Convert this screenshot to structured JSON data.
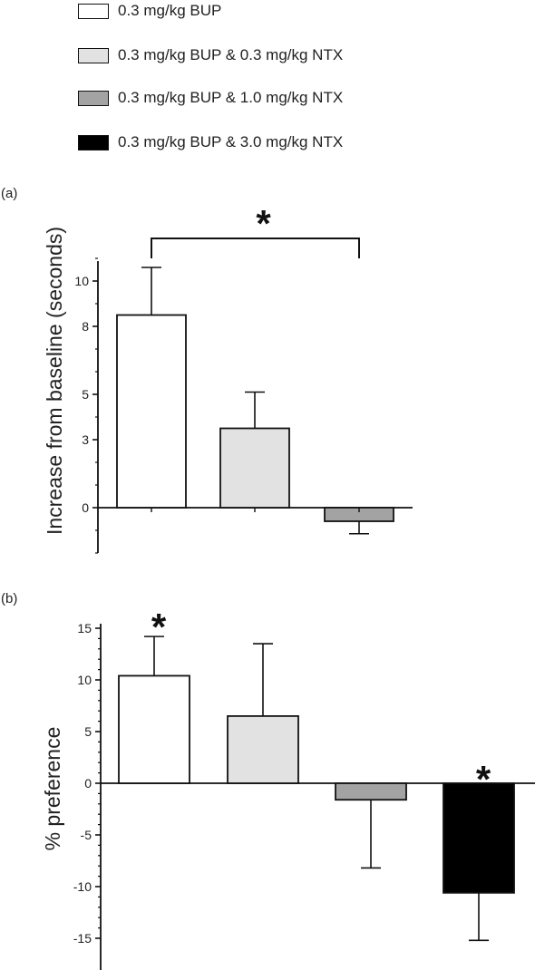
{
  "legend": [
    {
      "label": "0.3 mg/kg BUP",
      "color": "#ffffff"
    },
    {
      "label": "0.3 mg/kg BUP & 0.3 mg/kg NTX",
      "color": "#e2e2e2"
    },
    {
      "label": "0.3 mg/kg BUP & 1.0 mg/kg NTX",
      "color": "#a3a3a3"
    },
    {
      "label": "0.3 mg/kg BUP & 3.0 mg/kg NTX",
      "color": "#000000"
    }
  ],
  "panels": {
    "a_label": "(a)",
    "b_label": "(b)"
  },
  "chart_data": [
    {
      "type": "bar",
      "panel": "(a)",
      "ylabel": "Increase from baseline (seconds)",
      "ylim": [
        -2,
        11
      ],
      "yticks": [
        10,
        8,
        5,
        3,
        0
      ],
      "tick_labels": [
        "10",
        "8",
        "5",
        "3",
        "0"
      ],
      "categories": [
        "0.3 mg/kg BUP",
        "0.3 mg/kg BUP & 0.3 mg/kg NTX",
        "0.3 mg/kg BUP & 1.0 mg/kg NTX"
      ],
      "values": [
        8.5,
        3.5,
        -0.6
      ],
      "errors": [
        2.1,
        1.6,
        0.55
      ],
      "colors": [
        "#ffffff",
        "#e2e2e2",
        "#a3a3a3"
      ],
      "significance": [
        {
          "from": 0,
          "to": 2,
          "label": "*"
        }
      ]
    },
    {
      "type": "bar",
      "panel": "(b)",
      "ylabel": "% preference",
      "ylim": [
        -15.5,
        15.5
      ],
      "yticks": [
        15,
        10,
        5,
        0,
        -5,
        -10,
        -15
      ],
      "tick_labels": [
        "15",
        "10",
        "5",
        "0",
        "-5",
        "-10",
        "-15"
      ],
      "categories": [
        "0.3 mg/kg BUP",
        "0.3 mg/kg BUP & 0.3 mg/kg NTX",
        "0.3 mg/kg BUP & 1.0 mg/kg NTX",
        "0.3 mg/kg BUP & 3.0 mg/kg NTX"
      ],
      "values": [
        10.4,
        6.5,
        -1.6,
        -10.6
      ],
      "errors": [
        3.8,
        7.0,
        6.6,
        4.6
      ],
      "colors": [
        "#ffffff",
        "#e2e2e2",
        "#a3a3a3",
        "#000000"
      ],
      "significance_marks": [
        {
          "bar": 0,
          "label": "*"
        },
        {
          "bar": 3,
          "label": "*"
        }
      ]
    }
  ]
}
